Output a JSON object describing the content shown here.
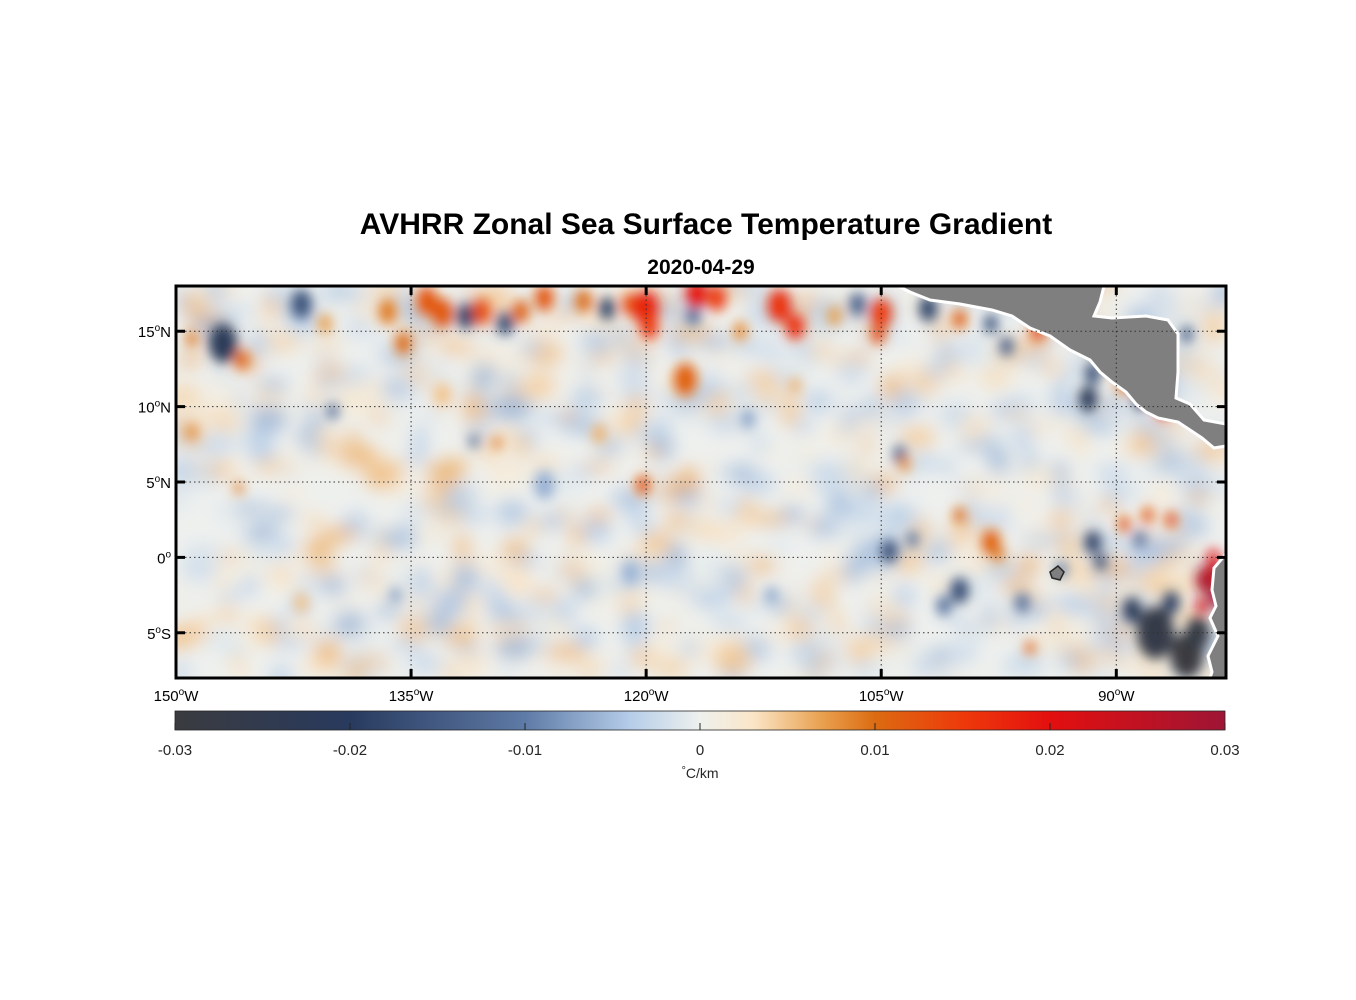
{
  "figure": {
    "title": "AVHRR Zonal Sea Surface Temperature Gradient",
    "subtitle": "2020-04-29"
  },
  "map": {
    "projection": "equirectangular",
    "lon_range": [
      -150,
      -83
    ],
    "lat_range": [
      -8,
      18
    ],
    "grid": "dotted",
    "land_color": "#7f7f7f",
    "coast_outline_color": "#ffffff",
    "lon_ticks": [
      {
        "value": -150,
        "label": "150",
        "sup": "o",
        "hemi": "W"
      },
      {
        "value": -135,
        "label": "135",
        "sup": "o",
        "hemi": "W"
      },
      {
        "value": -120,
        "label": "120",
        "sup": "o",
        "hemi": "W"
      },
      {
        "value": -105,
        "label": "105",
        "sup": "o",
        "hemi": "W"
      },
      {
        "value": -90,
        "label": "90",
        "sup": "o",
        "hemi": "W"
      }
    ],
    "lat_ticks": [
      {
        "value": 15,
        "label": "15",
        "sup": "o",
        "hemi": "N"
      },
      {
        "value": 10,
        "label": "10",
        "sup": "o",
        "hemi": "N"
      },
      {
        "value": 5,
        "label": "5",
        "sup": "o",
        "hemi": "N"
      },
      {
        "value": 0,
        "label": "0",
        "sup": "o",
        "hemi": ""
      },
      {
        "value": -5,
        "label": "5",
        "sup": "o",
        "hemi": "S"
      }
    ],
    "features": [
      {
        "lon": -147,
        "lat": 14.2,
        "v": -0.022,
        "r": 1.2
      },
      {
        "lon": -145.8,
        "lat": 13.1,
        "v": 0.011,
        "r": 0.6
      },
      {
        "lon": -149,
        "lat": 14.5,
        "v": 0.009,
        "r": 0.5
      },
      {
        "lon": -142,
        "lat": 16.8,
        "v": -0.016,
        "r": 0.9
      },
      {
        "lon": -140.5,
        "lat": 15.5,
        "v": 0.007,
        "r": 0.6
      },
      {
        "lon": -136.5,
        "lat": 16.3,
        "v": 0.009,
        "r": 0.8
      },
      {
        "lon": -135.5,
        "lat": 14.2,
        "v": 0.01,
        "r": 0.7
      },
      {
        "lon": -134,
        "lat": 17,
        "v": 0.012,
        "r": 0.9
      },
      {
        "lon": -133,
        "lat": 16.2,
        "v": 0.012,
        "r": 0.9
      },
      {
        "lon": -131.5,
        "lat": 16,
        "v": -0.018,
        "r": 0.8
      },
      {
        "lon": -130.5,
        "lat": 16.3,
        "v": 0.013,
        "r": 0.8
      },
      {
        "lon": -129,
        "lat": 15.5,
        "v": -0.017,
        "r": 0.7
      },
      {
        "lon": -128,
        "lat": 16.3,
        "v": 0.011,
        "r": 0.7
      },
      {
        "lon": -126.5,
        "lat": 17.2,
        "v": 0.012,
        "r": 0.8
      },
      {
        "lon": -124,
        "lat": 17,
        "v": 0.01,
        "r": 0.7
      },
      {
        "lon": -122.5,
        "lat": 16.5,
        "v": -0.018,
        "r": 0.7
      },
      {
        "lon": -121,
        "lat": 16.8,
        "v": 0.013,
        "r": 0.7
      },
      {
        "lon": -120,
        "lat": 16.5,
        "v": 0.018,
        "r": 1.1
      },
      {
        "lon": -119.8,
        "lat": 15.3,
        "v": 0.015,
        "r": 0.8
      },
      {
        "lon": -117,
        "lat": 16,
        "v": -0.012,
        "r": 0.6
      },
      {
        "lon": -116.8,
        "lat": 17.5,
        "v": 0.019,
        "r": 0.9
      },
      {
        "lon": -115.5,
        "lat": 17.2,
        "v": 0.015,
        "r": 0.8
      },
      {
        "lon": -117.5,
        "lat": 11.8,
        "v": 0.011,
        "r": 1.0
      },
      {
        "lon": -114,
        "lat": 15,
        "v": 0.008,
        "r": 0.6
      },
      {
        "lon": -111.5,
        "lat": 16.7,
        "v": 0.016,
        "r": 1.0
      },
      {
        "lon": -110.5,
        "lat": 15.3,
        "v": 0.016,
        "r": 0.8
      },
      {
        "lon": -108,
        "lat": 16,
        "v": 0.007,
        "r": 0.6
      },
      {
        "lon": -106.5,
        "lat": 16.8,
        "v": -0.014,
        "r": 0.7
      },
      {
        "lon": -105,
        "lat": 16.2,
        "v": 0.015,
        "r": 0.9
      },
      {
        "lon": -105.2,
        "lat": 14.8,
        "v": 0.013,
        "r": 0.6
      },
      {
        "lon": -102,
        "lat": 16.5,
        "v": -0.018,
        "r": 0.8
      },
      {
        "lon": -100,
        "lat": 15.8,
        "v": 0.011,
        "r": 0.6
      },
      {
        "lon": -98,
        "lat": 15.5,
        "v": -0.015,
        "r": 0.6
      },
      {
        "lon": -97,
        "lat": 14,
        "v": -0.014,
        "r": 0.6
      },
      {
        "lon": -95,
        "lat": 15,
        "v": 0.013,
        "r": 0.6
      },
      {
        "lon": -93.5,
        "lat": 16.2,
        "v": 0.008,
        "r": 0.5
      },
      {
        "lon": -91.5,
        "lat": 12.2,
        "v": -0.016,
        "r": 0.7
      },
      {
        "lon": -91.8,
        "lat": 10.5,
        "v": -0.022,
        "r": 0.8
      },
      {
        "lon": -89.5,
        "lat": 11.5,
        "v": 0.01,
        "r": 0.6
      },
      {
        "lon": -87.5,
        "lat": 10.8,
        "v": 0.015,
        "r": 0.8
      },
      {
        "lon": -88.5,
        "lat": 10.4,
        "v": -0.018,
        "r": 0.6
      },
      {
        "lon": -87,
        "lat": 9.8,
        "v": 0.016,
        "r": 0.6
      },
      {
        "lon": -85.5,
        "lat": 14.8,
        "v": -0.016,
        "r": 0.5
      },
      {
        "lon": -146,
        "lat": 4.6,
        "v": 0.009,
        "r": 0.4
      },
      {
        "lon": -140,
        "lat": 9.7,
        "v": -0.012,
        "r": 0.5
      },
      {
        "lon": -131,
        "lat": 7.7,
        "v": -0.013,
        "r": 0.4
      },
      {
        "lon": -129.5,
        "lat": 7.6,
        "v": 0.009,
        "r": 0.4
      },
      {
        "lon": -120.2,
        "lat": 4.8,
        "v": 0.012,
        "r": 0.6
      },
      {
        "lon": -123,
        "lat": 8.2,
        "v": 0.006,
        "r": 0.6
      },
      {
        "lon": -133,
        "lat": 10.8,
        "v": 0.005,
        "r": 0.7
      },
      {
        "lon": -126.5,
        "lat": 4.8,
        "v": -0.006,
        "r": 0.9
      },
      {
        "lon": -113.5,
        "lat": 9.2,
        "v": -0.007,
        "r": 0.6
      },
      {
        "lon": -110.5,
        "lat": 11.4,
        "v": 0.006,
        "r": 0.5
      },
      {
        "lon": -103.8,
        "lat": 6.8,
        "v": -0.013,
        "r": 0.6
      },
      {
        "lon": -103.5,
        "lat": 6.2,
        "v": 0.008,
        "r": 0.5
      },
      {
        "lon": -100,
        "lat": 2.8,
        "v": 0.01,
        "r": 0.5
      },
      {
        "lon": -98,
        "lat": 1,
        "v": 0.011,
        "r": 0.8
      },
      {
        "lon": -97.5,
        "lat": 0.2,
        "v": 0.009,
        "r": 0.5
      },
      {
        "lon": -104.5,
        "lat": 0.4,
        "v": -0.017,
        "r": 0.7
      },
      {
        "lon": -103,
        "lat": 1.2,
        "v": -0.012,
        "r": 0.5
      },
      {
        "lon": -91.5,
        "lat": 1,
        "v": -0.019,
        "r": 0.7
      },
      {
        "lon": -91,
        "lat": -0.3,
        "v": -0.019,
        "r": 0.5
      },
      {
        "lon": -93.5,
        "lat": -0.8,
        "v": -0.01,
        "r": 0.5
      },
      {
        "lon": -89.5,
        "lat": 2.2,
        "v": 0.012,
        "r": 0.5
      },
      {
        "lon": -88,
        "lat": 2.8,
        "v": 0.012,
        "r": 0.5
      },
      {
        "lon": -86.5,
        "lat": 2.5,
        "v": 0.013,
        "r": 0.5
      },
      {
        "lon": -88.5,
        "lat": 1.2,
        "v": -0.012,
        "r": 0.5
      },
      {
        "lon": -100,
        "lat": -2.2,
        "v": -0.017,
        "r": 0.8
      },
      {
        "lon": -101,
        "lat": -3.2,
        "v": -0.012,
        "r": 0.6
      },
      {
        "lon": -96,
        "lat": -3,
        "v": -0.012,
        "r": 0.6
      },
      {
        "lon": -95.5,
        "lat": -6,
        "v": 0.012,
        "r": 0.4
      },
      {
        "lon": -87.5,
        "lat": -5,
        "v": -0.027,
        "r": 1.6
      },
      {
        "lon": -85.5,
        "lat": -6.5,
        "v": -0.03,
        "r": 1.4
      },
      {
        "lon": -89,
        "lat": -3.5,
        "v": -0.022,
        "r": 0.8
      },
      {
        "lon": -86.5,
        "lat": -3,
        "v": -0.02,
        "r": 0.7
      },
      {
        "lon": -84.8,
        "lat": -5,
        "v": -0.028,
        "r": 1.0
      },
      {
        "lon": -84.3,
        "lat": -1.5,
        "v": 0.028,
        "r": 0.8
      },
      {
        "lon": -83.7,
        "lat": -1,
        "v": 0.025,
        "r": 0.7
      },
      {
        "lon": -83.5,
        "lat": -2.6,
        "v": 0.03,
        "r": 0.7
      },
      {
        "lon": -84.5,
        "lat": -3.2,
        "v": 0.022,
        "r": 0.5
      },
      {
        "lon": -83.8,
        "lat": 0,
        "v": 0.02,
        "r": 0.5
      },
      {
        "lon": -136,
        "lat": -2.5,
        "v": -0.007,
        "r": 0.5
      },
      {
        "lon": -121,
        "lat": -1,
        "v": -0.006,
        "r": 0.7
      },
      {
        "lon": -112,
        "lat": -2.5,
        "v": -0.007,
        "r": 0.5
      },
      {
        "lon": -142,
        "lat": -3,
        "v": 0.005,
        "r": 0.6
      },
      {
        "lon": -149,
        "lat": 8.3,
        "v": 0.008,
        "r": 0.5
      }
    ]
  },
  "colorbar": {
    "min": -0.03,
    "max": 0.03,
    "unit_prefix": "°",
    "unit": "C/km",
    "ticks": [
      {
        "value": -0.03,
        "label": "-0.03"
      },
      {
        "value": -0.02,
        "label": "-0.02"
      },
      {
        "value": -0.01,
        "label": "-0.01"
      },
      {
        "value": 0,
        "label": "0"
      },
      {
        "value": 0.01,
        "label": "0.01"
      },
      {
        "value": 0.02,
        "label": "0.02"
      },
      {
        "value": 0.03,
        "label": "0.03"
      }
    ],
    "colormap": [
      {
        "v": -0.03,
        "color": "#3a3b3f"
      },
      {
        "v": -0.02,
        "color": "#283a5e"
      },
      {
        "v": -0.01,
        "color": "#5e7aa6"
      },
      {
        "v": -0.004,
        "color": "#b5cde9"
      },
      {
        "v": 0,
        "color": "#eef1ee"
      },
      {
        "v": 0.003,
        "color": "#fbe6c8"
      },
      {
        "v": 0.007,
        "color": "#e9a04e"
      },
      {
        "v": 0.01,
        "color": "#dc6b12"
      },
      {
        "v": 0.015,
        "color": "#ee3a0b"
      },
      {
        "v": 0.02,
        "color": "#e30f0f"
      },
      {
        "v": 0.03,
        "color": "#9e1535"
      }
    ]
  }
}
